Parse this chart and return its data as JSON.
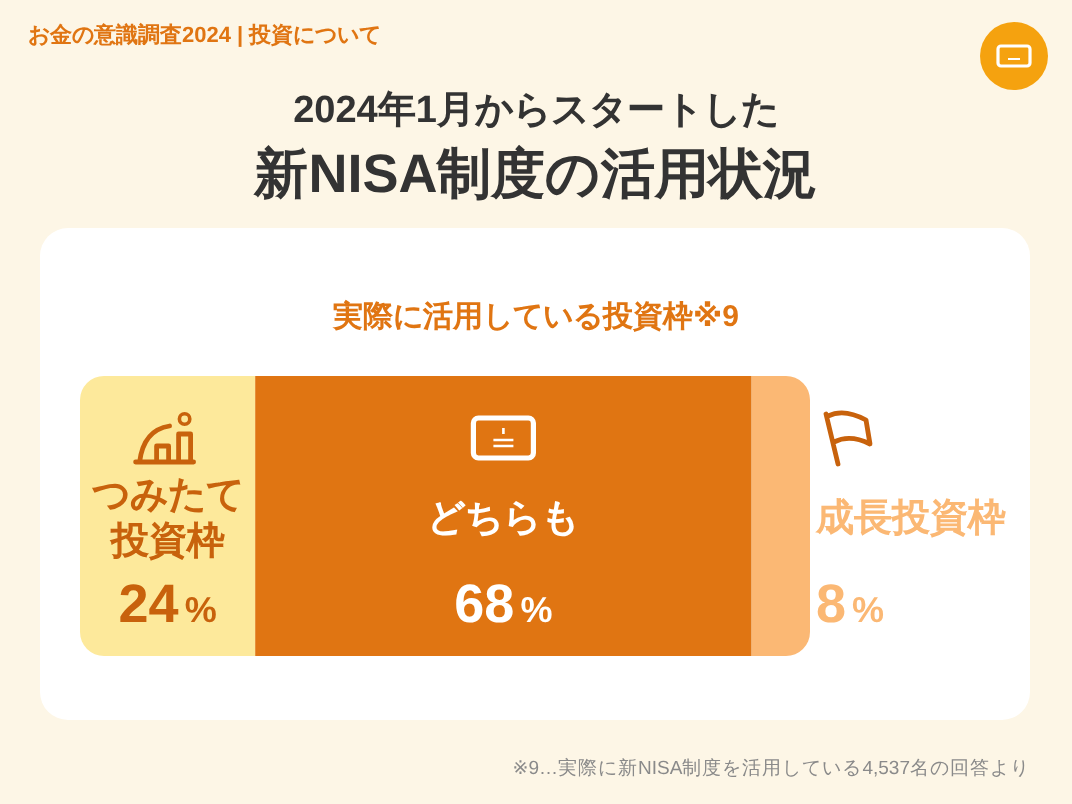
{
  "chart_data": {
    "type": "bar",
    "orientation": "horizontal",
    "stacked": true,
    "subtitle": "2024年1月からスタートした",
    "title": "新NISA制度の活用状況",
    "annotations": [
      "お金の意識調査2024 | 投資について",
      "実際に活用している投資枠※9",
      "※9…実際に新NISA制度を活用している4,537名の回答より"
    ],
    "categories": [
      null
    ],
    "series": [
      {
        "name": "つみたて投資枠",
        "color": "#fde99b",
        "values": [
          24
        ],
        "value_labels": [
          "24%"
        ]
      },
      {
        "name": "どちらも",
        "color": "#e07512",
        "values": [
          68
        ],
        "value_labels": [
          "68%"
        ]
      },
      {
        "name": "成長投資枠",
        "color": "#fbb874",
        "values": [
          8
        ],
        "value_labels": [
          "8%"
        ]
      }
    ]
  }
}
